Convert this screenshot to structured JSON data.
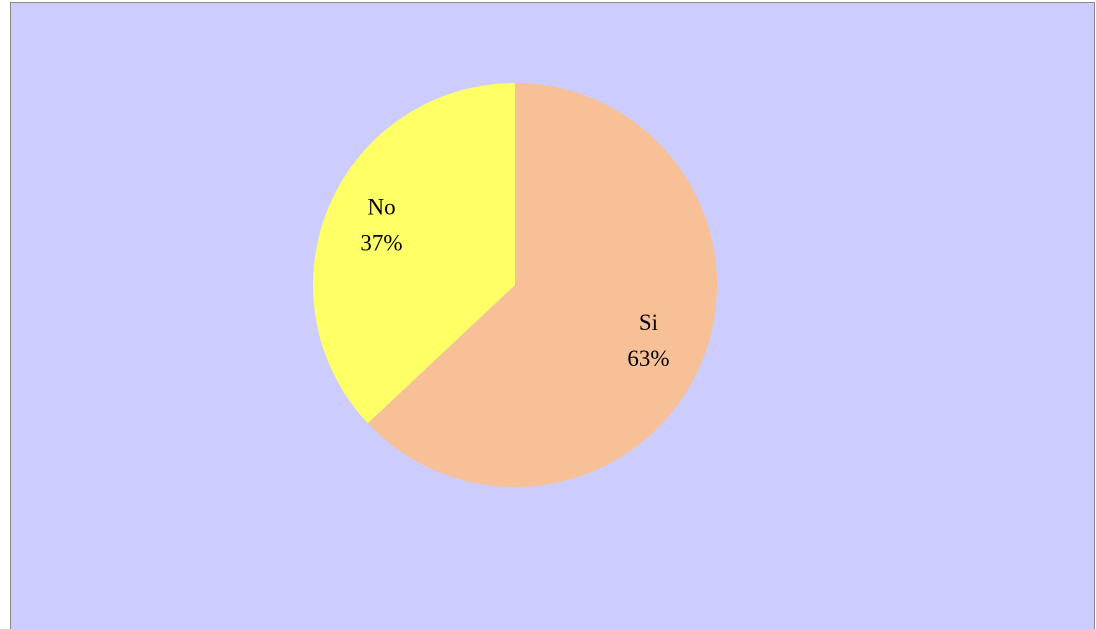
{
  "chart_data": {
    "type": "pie",
    "categories": [
      "Si",
      "No"
    ],
    "values": [
      63,
      37
    ],
    "value_labels": [
      "63%",
      "37%"
    ],
    "colors": [
      "#F8C096",
      "#FFFF66"
    ]
  }
}
